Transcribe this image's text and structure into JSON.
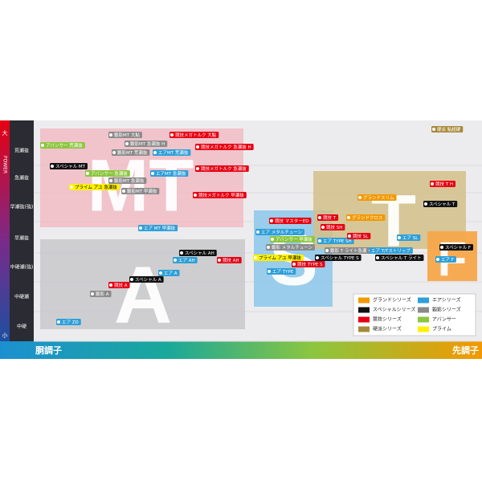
{
  "axes": {
    "power_top": "大",
    "power_title": "POWER",
    "power_bottom": "小",
    "levels": [
      "荒瀬抜",
      "急瀬抜",
      "早瀬抜(強)",
      "早瀬抜",
      "中硬瀬(強)",
      "中硬瀬",
      "中硬"
    ],
    "left": "胴調子",
    "right": "先調子"
  },
  "regions": [
    "MT",
    "A",
    "S",
    "T",
    "F"
  ],
  "series": [
    {
      "name": "グランドシリーズ",
      "color": "#f39800",
      "items": [
        "グランドスリム",
        "グランドクロス"
      ]
    },
    {
      "name": "エアシリーズ",
      "color": "#2e9fd8",
      "items": [
        "エアMT 荒瀬抜",
        "エアMT 急瀬抜",
        "エア MT 早瀬抜",
        "エア メタルチューン",
        "エア TYPE SH",
        "エア SL",
        "エア T/Tストリップ",
        "エア F",
        "エア TYPE",
        "エア AH",
        "エア A",
        "エア ZD"
      ]
    },
    {
      "name": "スペシャルシリーズ",
      "color": "#111111",
      "items": [
        "スペシャル MT",
        "スペシャル T",
        "スペシャル F",
        "スペシャル TYPE S",
        "スペシャル T ライト",
        "スペシャル AH",
        "スペシャル A"
      ]
    },
    {
      "name": "鍛影シリーズ",
      "color": "#8a8a8a",
      "items": [
        "鍛影MT 大鮎",
        "鍛影MT 急瀬抜 H",
        "鍛影MT 荒瀬抜",
        "鍛影MT 急瀬抜",
        "鍛影MT 早瀬抜",
        "鍛影 メタルチューン",
        "鍛影 T ライト急瀬",
        "鍛影 A"
      ]
    },
    {
      "name": "競技シリーズ",
      "color": "#e60012",
      "items": [
        "競技メガトルク 大鮎",
        "競技メガトルク 急瀬抜 H",
        "競技メガトルク 急瀬抜",
        "競技メガトルク 早瀬抜",
        "競技 T H",
        "競技 T",
        "競技 マスターED",
        "競技 SH",
        "競技 SL",
        "競技 TYPE S",
        "競技 AH",
        "競技 A"
      ]
    },
    {
      "name": "アバンサー",
      "color": "#8cc63f",
      "items": [
        "アバンサー 荒瀬抜",
        "アバンサー 急瀬抜",
        "アバンサー 早瀬抜"
      ]
    },
    {
      "name": "硬派シリーズ",
      "color": "#a8893a",
      "items": [
        "硬派 鮎超硬"
      ]
    },
    {
      "name": "プライム",
      "color": "#fff100",
      "items": [
        "プライム アユ 急瀬抜",
        "プライム アユ 早瀬抜"
      ]
    }
  ]
}
